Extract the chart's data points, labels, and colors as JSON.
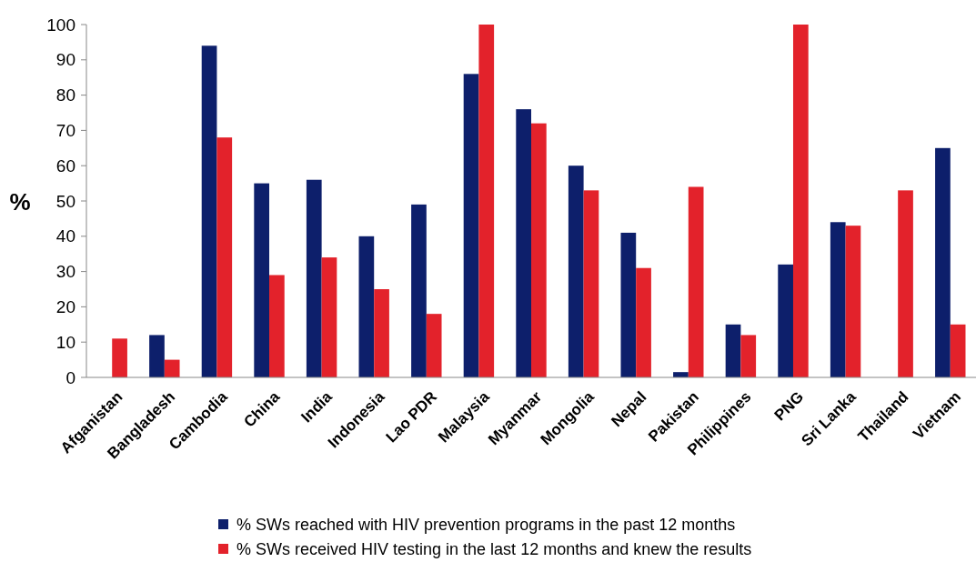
{
  "chart_data": {
    "type": "bar",
    "ylabel": "%",
    "categories": [
      "Afganistan",
      "Bangladesh",
      "Cambodia",
      "China",
      "India",
      "Indonesia",
      "Lao PDR",
      "Malaysia",
      "Myanmar",
      "Mongolia",
      "Nepal",
      "Pakistan",
      "Philippines",
      "PNG",
      "Sri Lanka",
      "Thailand",
      "Vietnam"
    ],
    "series": [
      {
        "name": "% SWs reached with HIV prevention programs in the past 12 months",
        "color": "#0d1f6b",
        "values": [
          null,
          12,
          94,
          55,
          56,
          40,
          49,
          86,
          76,
          60,
          41,
          1.5,
          15,
          32,
          44,
          null,
          65
        ]
      },
      {
        "name": "% SWs received HIV testing in the last 12 months and knew the results",
        "color": "#e3222b",
        "values": [
          11,
          5,
          68,
          29,
          34,
          25,
          18,
          100,
          72,
          53,
          31,
          54,
          12,
          100,
          43,
          53,
          15
        ]
      }
    ],
    "ylim": [
      0,
      100
    ],
    "yticks": [
      0,
      10,
      20,
      30,
      40,
      50,
      60,
      70,
      80,
      90,
      100
    ],
    "grid": false,
    "legend": "bottom"
  }
}
